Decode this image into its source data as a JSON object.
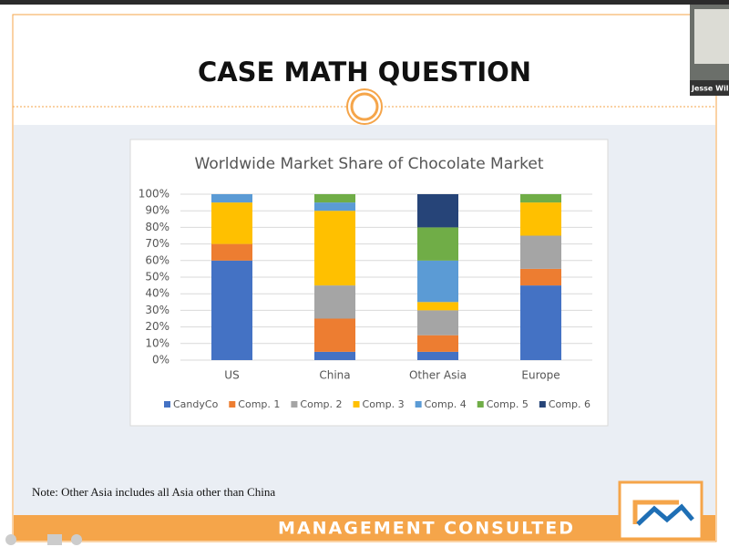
{
  "slide": {
    "title": "CASE MATH QUESTION",
    "note": "Note: Other Asia includes all Asia other than China",
    "footer": "MANAGEMENT CONSULTED"
  },
  "webcam": {
    "label": "Jesse Wil"
  },
  "chart_data": {
    "type": "stacked_bar",
    "title": "Worldwide Market Share of Chocolate Market",
    "categories": [
      "US",
      "China",
      "Other Asia",
      "Europe"
    ],
    "series": [
      {
        "name": "CandyCo",
        "color": "#4472c4",
        "values": [
          60,
          5,
          5,
          45
        ]
      },
      {
        "name": "Comp. 1",
        "color": "#ed7d31",
        "values": [
          10,
          20,
          10,
          10
        ]
      },
      {
        "name": "Comp. 2",
        "color": "#a5a5a5",
        "values": [
          0,
          20,
          15,
          20
        ]
      },
      {
        "name": "Comp. 3",
        "color": "#ffc000",
        "values": [
          25,
          45,
          5,
          20
        ]
      },
      {
        "name": "Comp. 4",
        "color": "#5b9bd5",
        "values": [
          5,
          5,
          25,
          0
        ]
      },
      {
        "name": "Comp. 5",
        "color": "#70ad47",
        "values": [
          0,
          5,
          20,
          5
        ]
      },
      {
        "name": "Comp. 6",
        "color": "#264478",
        "values": [
          0,
          0,
          20,
          0
        ]
      }
    ],
    "ylim": [
      0,
      100
    ],
    "yticks": [
      {
        "value": 0,
        "label": "0%"
      },
      {
        "value": 10,
        "label": "10%"
      },
      {
        "value": 20,
        "label": "20%"
      },
      {
        "value": 30,
        "label": "30%"
      },
      {
        "value": 40,
        "label": "40%"
      },
      {
        "value": 50,
        "label": "50%"
      },
      {
        "value": 60,
        "label": "60%"
      },
      {
        "value": 70,
        "label": "70%"
      },
      {
        "value": 80,
        "label": "80%"
      },
      {
        "value": 90,
        "label": "90%"
      },
      {
        "value": 100,
        "label": "100%"
      }
    ],
    "grid": true,
    "legend": "bottom"
  }
}
